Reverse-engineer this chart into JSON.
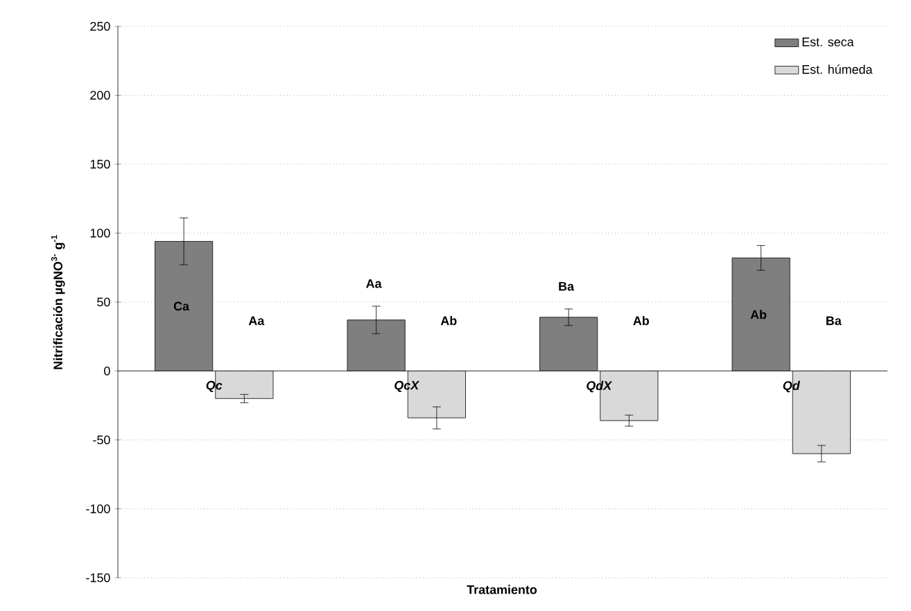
{
  "chart_data": {
    "type": "bar",
    "xlabel": "Tratamiento",
    "ylabel": "Nitrificación µgNO$^{3-}$ g$^{-1}$",
    "categories": [
      "Qc",
      "QcX",
      "QdX",
      "Qd"
    ],
    "series": [
      {
        "name": "Est. seca",
        "color": "#7f7f7f",
        "values": [
          94,
          37,
          39,
          82
        ],
        "errors": [
          17,
          10,
          6,
          9
        ]
      },
      {
        "name": "Est. húmeda",
        "color": "#d9d9d9",
        "values": [
          -20,
          -34,
          -36,
          -60
        ],
        "errors": [
          3,
          8,
          4,
          6
        ]
      }
    ],
    "ylim": [
      -150,
      250
    ],
    "yticks": [
      -150,
      -100,
      -50,
      0,
      50,
      100,
      150,
      200,
      250
    ],
    "grid": "y",
    "legend": "top right",
    "annotations": [
      "Ca",
      "Aa",
      "Aa",
      "Ab",
      "Ba",
      "Ab",
      "Ab",
      "Ba"
    ]
  }
}
